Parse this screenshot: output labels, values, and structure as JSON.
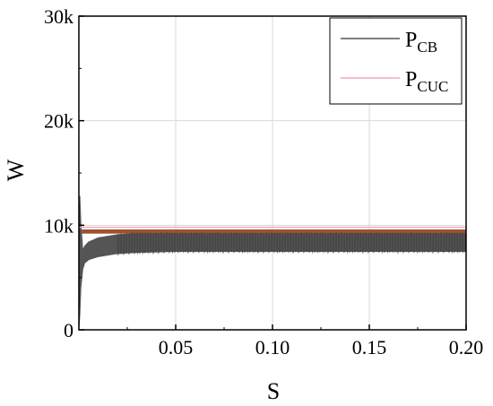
{
  "chart_data": {
    "type": "line",
    "xlabel": "S",
    "ylabel": "W",
    "xlim": [
      0,
      0.2
    ],
    "ylim": [
      0,
      30000
    ],
    "x_ticks": [
      0.05,
      0.1,
      0.15,
      0.2
    ],
    "x_tick_labels": [
      "0.05",
      "0.10",
      "0.15",
      "0.20"
    ],
    "y_ticks": [
      0,
      10000,
      20000,
      30000
    ],
    "y_tick_labels": [
      "0",
      "10k",
      "20k",
      "30k"
    ],
    "grid": true,
    "legend_placement": "top-right",
    "series": [
      {
        "name_main": "P",
        "name_sub": "CB",
        "color": "#555555",
        "style": "dense oscillation band",
        "x": [
          0,
          0.0005,
          0.001,
          0.002,
          0.003,
          0.005,
          0.01,
          0.02,
          0.03,
          0.05,
          0.1,
          0.15,
          0.2
        ],
        "upper": [
          0,
          12800,
          10200,
          7600,
          8000,
          8400,
          8800,
          9100,
          9200,
          9200,
          9200,
          9200,
          9200
        ],
        "lower": [
          0,
          1500,
          4000,
          5800,
          6400,
          6700,
          7000,
          7300,
          7400,
          7500,
          7500,
          7500,
          7500
        ]
      },
      {
        "name_main": "P",
        "name_sub": "CUC",
        "color": "#f4a6c0",
        "style": "line",
        "x": [
          0,
          0.2
        ],
        "y": [
          9800,
          9800
        ]
      }
    ],
    "reference_band": {
      "color": "#a0522d",
      "y": [
        9200,
        9600
      ],
      "x": [
        0.0015,
        0.2
      ]
    }
  }
}
